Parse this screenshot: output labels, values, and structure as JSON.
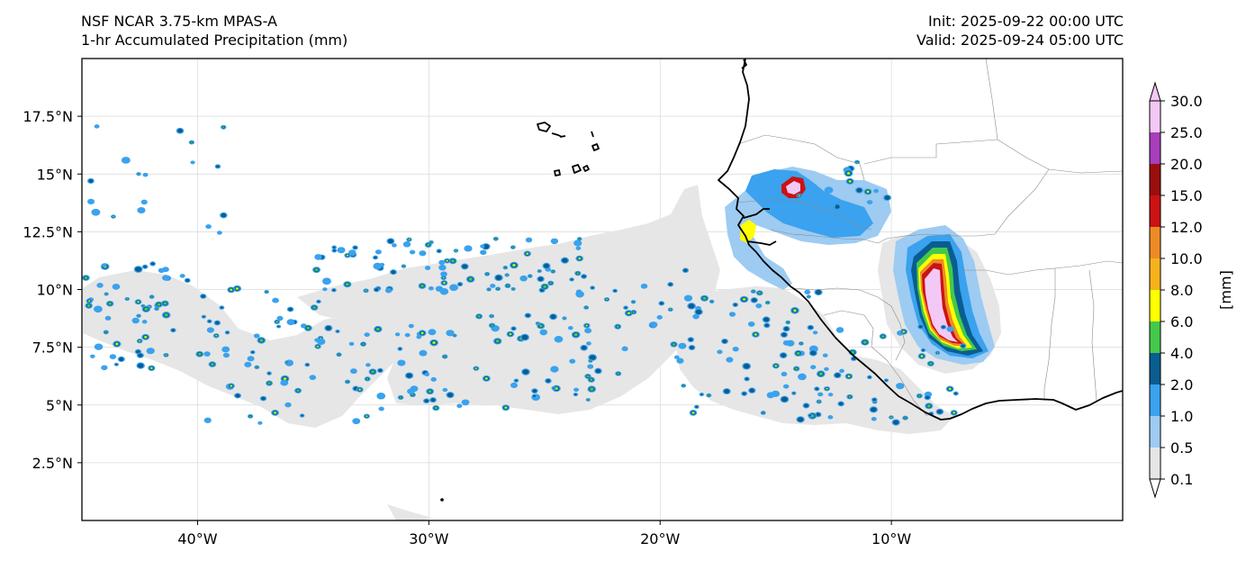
{
  "header": {
    "model_title": "NSF NCAR 3.75-km MPAS-A",
    "field_title": "1-hr Accumulated Precipitation (mm)",
    "init_text": "Init: 2025-09-22 00:00 UTC",
    "valid_text": "Valid: 2025-09-24 05:00 UTC"
  },
  "map": {
    "lon_range": [
      -45,
      0
    ],
    "lat_range": [
      0,
      20
    ],
    "lat_ticks": [
      {
        "value": 17.5,
        "label": "17.5°N"
      },
      {
        "value": 15,
        "label": "15°N"
      },
      {
        "value": 12.5,
        "label": "12.5°N"
      },
      {
        "value": 10,
        "label": "10°N"
      },
      {
        "value": 7.5,
        "label": "7.5°N"
      },
      {
        "value": 5,
        "label": "5°N"
      },
      {
        "value": 2.5,
        "label": "2.5°N"
      }
    ],
    "lon_ticks": [
      {
        "value": -40,
        "label": "40°W"
      },
      {
        "value": -30,
        "label": "30°W"
      },
      {
        "value": -20,
        "label": "20°W"
      },
      {
        "value": -10,
        "label": "10°W"
      }
    ],
    "gridlines": true
  },
  "colorbar": {
    "unit_label": "[mm]",
    "levels": [
      "0.1",
      "0.5",
      "1.0",
      "2.0",
      "4.0",
      "6.0",
      "8.0",
      "10.0",
      "12.0",
      "15.0",
      "20.0",
      "25.0",
      "30.0"
    ],
    "colors": [
      "#e6e6e6",
      "#9dcbf2",
      "#3aa2ee",
      "#0a5d91",
      "#44c94a",
      "#ffff00",
      "#f6b21b",
      "#ed8a26",
      "#cc1212",
      "#9c0d0d",
      "#a73ebb",
      "#f4c8f4"
    ],
    "extend": "both"
  },
  "colors": {
    "coastline": "#000000",
    "border": "#8a8a8a",
    "grid": "#d8d8d8"
  }
}
